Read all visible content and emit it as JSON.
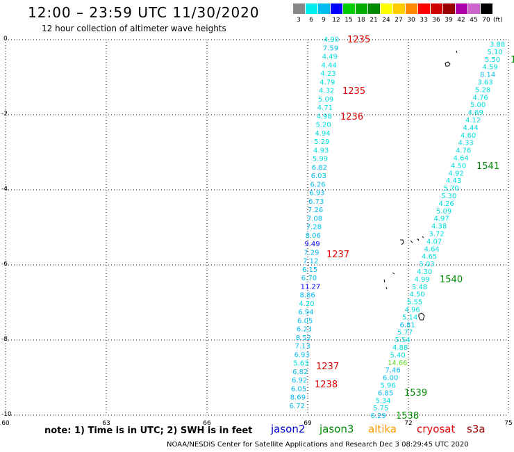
{
  "header": {
    "title": "12:00 – 23:59 UTC 11/30/2020",
    "subtitle": "12 hour collection of altimeter wave heights"
  },
  "legend": {
    "unit": "(ft)",
    "items": [
      {
        "label": "3",
        "color": "#888888"
      },
      {
        "label": "6",
        "color": "#00eeee"
      },
      {
        "label": "9",
        "color": "#00bbee"
      },
      {
        "label": "12",
        "color": "#0000ff"
      },
      {
        "label": "15",
        "color": "#00cc00"
      },
      {
        "label": "18",
        "color": "#00aa00"
      },
      {
        "label": "21",
        "color": "#008800"
      },
      {
        "label": "24",
        "color": "#ffff00"
      },
      {
        "label": "27",
        "color": "#ffcc00"
      },
      {
        "label": "30",
        "color": "#ff8800"
      },
      {
        "label": "33",
        "color": "#ff0000"
      },
      {
        "label": "36",
        "color": "#cc0000"
      },
      {
        "label": "39",
        "color": "#990000"
      },
      {
        "label": "42",
        "color": "#aa00aa"
      },
      {
        "label": "45",
        "color": "#cc66cc"
      },
      {
        "label": "70",
        "color": "#000000"
      }
    ]
  },
  "axes": {
    "y_ticks": [
      "0",
      "-2",
      "-4",
      "-6",
      "-8",
      "-10"
    ],
    "x_ticks": [
      "60",
      "63",
      "66",
      "69",
      "72",
      "75"
    ]
  },
  "note": "note:  1) Time is in UTC;  2) SWH is in feet",
  "satellites": [
    {
      "name": "jason2",
      "color": "#0000cc"
    },
    {
      "name": "jason3",
      "color": "#008800"
    },
    {
      "name": "altika",
      "color": "#ff9900"
    },
    {
      "name": "cryosat",
      "color": "#dd0000"
    },
    {
      "name": "s3a",
      "color": "#990000"
    }
  ],
  "footer": "NOAA/NESDIS Center for Satellite Applications and Research    Dec  3 08:29:45 UTC 2020",
  "track_left": [
    "4.90",
    "7.59",
    "4.49",
    "4.44",
    "4.23",
    "4.79",
    "4.32",
    "5.09",
    "4.71",
    "4.98",
    "5.20",
    "4.94",
    "5.29",
    "4.93",
    "5.99",
    "6.82",
    "6.03",
    "6.26",
    "6.93",
    "6.73",
    "7.26",
    "7.08",
    "7.28",
    "8.06",
    "9.49",
    "7.29",
    "7.12",
    "6.15",
    "6.70",
    "11.27",
    "8.86",
    "4.20",
    "6.94",
    "6.05",
    "6.23",
    "8.52",
    "7.13",
    "6.93",
    "5.63",
    "6.82",
    "6.92",
    "6.05",
    "8.69",
    "6.72"
  ],
  "track_right": [
    "3.88",
    "5.10",
    "5.50",
    "4.59",
    "8.14",
    "3.63",
    "5.28",
    "4.76",
    "5.00",
    "4.69",
    "4.12",
    "4.44",
    "4.60",
    "4.33",
    "4.76",
    "4.64",
    "4.50",
    "4.92",
    "4.43",
    "5.70",
    "5.30",
    "4.26",
    "5.09",
    "4.97",
    "4.38",
    "3.72",
    "4.07",
    "4.64",
    "4.65",
    "5.03",
    "4.30",
    "4.99",
    "5.48",
    "4.50",
    "5.55",
    "4.96",
    "5.14",
    "6.81",
    "5.77",
    "5.54",
    "4.88",
    "5.40",
    "14.66",
    "7.46",
    "6.00",
    "5.96",
    "6.85",
    "5.34",
    "5.75",
    "6.29"
  ],
  "time_labels": [
    {
      "text": "1235",
      "color": "#dd0000"
    },
    {
      "text": "1235",
      "color": "#dd0000"
    },
    {
      "text": "1236",
      "color": "#dd0000"
    },
    {
      "text": "1237",
      "color": "#dd0000"
    },
    {
      "text": "1237",
      "color": "#dd0000"
    },
    {
      "text": "1238",
      "color": "#dd0000"
    },
    {
      "text": "1541",
      "color": "#008800"
    },
    {
      "text": "1540",
      "color": "#008800"
    },
    {
      "text": "1539",
      "color": "#008800"
    },
    {
      "text": "1538",
      "color": "#008800"
    },
    {
      "text": "1",
      "color": "#008800"
    }
  ]
}
